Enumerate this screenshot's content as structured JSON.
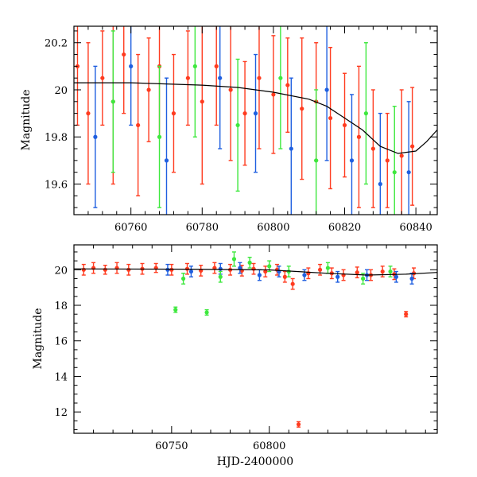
{
  "chart_data": [
    {
      "type": "scatter",
      "panel": "top",
      "title": "",
      "xlabel": "",
      "ylabel": "Magnitude",
      "xlim": [
        60744,
        60846
      ],
      "ylim": [
        20.27,
        19.47
      ],
      "y_inverted": true,
      "x_ticks": [
        60760,
        60780,
        60800,
        60820,
        60840
      ],
      "y_ticks": [
        19.6,
        19.8,
        20,
        20.2
      ],
      "x_tick_labels": [
        "60760",
        "60780",
        "60800",
        "60820",
        "60840"
      ],
      "y_tick_labels": [
        "19.6",
        "19.8",
        "20",
        "20.2"
      ],
      "grid": false,
      "legend": "none",
      "model_curve": {
        "color": "#000000",
        "points": [
          [
            60744,
            20.03
          ],
          [
            60760,
            20.03
          ],
          [
            60780,
            20.02
          ],
          [
            60790,
            20.01
          ],
          [
            60800,
            19.99
          ],
          [
            60810,
            19.96
          ],
          [
            60815,
            19.93
          ],
          [
            60820,
            19.88
          ],
          [
            60825,
            19.83
          ],
          [
            60830,
            19.76
          ],
          [
            60835,
            19.73
          ],
          [
            60840,
            19.74
          ],
          [
            60843,
            19.78
          ],
          [
            60846,
            19.83
          ]
        ]
      },
      "series": [
        {
          "color": "#ff3b1f",
          "points": [
            [
              60745,
              20.1,
              0.25
            ],
            [
              60748,
              19.9,
              0.3
            ],
            [
              60752,
              20.05,
              0.2
            ],
            [
              60755,
              19.95,
              0.35
            ],
            [
              60758,
              20.15,
              0.25
            ],
            [
              60762,
              19.85,
              0.3
            ],
            [
              60765,
              20.0,
              0.22
            ],
            [
              60768,
              20.1,
              0.3
            ],
            [
              60772,
              19.9,
              0.25
            ],
            [
              60776,
              20.05,
              0.2
            ],
            [
              60780,
              19.95,
              0.35
            ],
            [
              60784,
              20.1,
              0.25
            ],
            [
              60788,
              20.0,
              0.3
            ],
            [
              60792,
              19.9,
              0.22
            ],
            [
              60796,
              20.05,
              0.3
            ],
            [
              60800,
              19.98,
              0.25
            ],
            [
              60804,
              20.02,
              0.2
            ],
            [
              60808,
              19.92,
              0.3
            ],
            [
              60812,
              19.95,
              0.25
            ],
            [
              60816,
              19.88,
              0.3
            ],
            [
              60820,
              19.85,
              0.22
            ],
            [
              60824,
              19.8,
              0.3
            ],
            [
              60828,
              19.75,
              0.25
            ],
            [
              60832,
              19.7,
              0.2
            ],
            [
              60836,
              19.72,
              0.28
            ],
            [
              60839,
              19.76,
              0.25
            ]
          ]
        },
        {
          "color": "#1f5fe0",
          "points": [
            [
              60750,
              19.8,
              0.3
            ],
            [
              60760,
              20.1,
              0.25
            ],
            [
              60770,
              19.7,
              0.35
            ],
            [
              60785,
              20.05,
              0.3
            ],
            [
              60795,
              19.9,
              0.25
            ],
            [
              60805,
              19.75,
              0.3
            ],
            [
              60815,
              20.0,
              0.3
            ],
            [
              60822,
              19.7,
              0.28
            ],
            [
              60830,
              19.6,
              0.3
            ],
            [
              60838,
              19.65,
              0.3
            ]
          ]
        },
        {
          "color": "#3ee83e",
          "points": [
            [
              60755,
              19.95,
              0.3
            ],
            [
              60768,
              19.8,
              0.3
            ],
            [
              60778,
              20.1,
              0.3
            ],
            [
              60790,
              19.85,
              0.28
            ],
            [
              60802,
              20.05,
              0.3
            ],
            [
              60812,
              19.7,
              0.3
            ],
            [
              60826,
              19.9,
              0.3
            ],
            [
              60834,
              19.65,
              0.28
            ]
          ]
        }
      ]
    },
    {
      "type": "scatter",
      "panel": "bottom",
      "title": "",
      "xlabel": "HJD-2400000",
      "ylabel": "Magnitude",
      "xlim": [
        60700,
        60886
      ],
      "ylim": [
        21.4,
        10.8
      ],
      "y_inverted": true,
      "x_ticks": [
        60750,
        60800
      ],
      "y_ticks": [
        12,
        14,
        16,
        18,
        20
      ],
      "x_tick_labels": [
        "60750",
        "60800"
      ],
      "y_tick_labels": [
        "12",
        "14",
        "16",
        "18",
        "20"
      ],
      "grid": false,
      "legend": "none",
      "model_curve": {
        "color": "#000000",
        "points": [
          [
            60700,
            20.05
          ],
          [
            60760,
            20.03
          ],
          [
            60800,
            19.99
          ],
          [
            60830,
            19.8
          ],
          [
            60850,
            19.7
          ],
          [
            60870,
            19.75
          ],
          [
            60886,
            19.85
          ]
        ]
      },
      "series": [
        {
          "color": "#ff3b1f",
          "points": [
            [
              60705,
              20.0,
              0.3
            ],
            [
              60710,
              20.1,
              0.3
            ],
            [
              60716,
              20.0,
              0.25
            ],
            [
              60722,
              20.1,
              0.3
            ],
            [
              60728,
              20.0,
              0.3
            ],
            [
              60735,
              20.05,
              0.3
            ],
            [
              60742,
              20.1,
              0.25
            ],
            [
              60750,
              20.0,
              0.3
            ],
            [
              60758,
              20.05,
              0.3
            ],
            [
              60765,
              19.95,
              0.3
            ],
            [
              60772,
              20.1,
              0.3
            ],
            [
              60780,
              20.0,
              0.3
            ],
            [
              60786,
              19.95,
              0.3
            ],
            [
              60792,
              20.05,
              0.3
            ],
            [
              60798,
              19.9,
              0.3
            ],
            [
              60804,
              20.0,
              0.3
            ],
            [
              60808,
              19.6,
              0.3
            ],
            [
              60812,
              19.2,
              0.3
            ],
            [
              60815,
              11.3,
              0.15
            ],
            [
              60820,
              19.8,
              0.3
            ],
            [
              60826,
              20.0,
              0.3
            ],
            [
              60832,
              19.8,
              0.3
            ],
            [
              60838,
              19.7,
              0.3
            ],
            [
              60845,
              19.85,
              0.3
            ],
            [
              60852,
              19.7,
              0.3
            ],
            [
              60858,
              19.9,
              0.3
            ],
            [
              60864,
              19.75,
              0.3
            ],
            [
              60870,
              17.5,
              0.15
            ],
            [
              60874,
              19.8,
              0.3
            ]
          ]
        },
        {
          "color": "#1f5fe0",
          "points": [
            [
              60748,
              20.0,
              0.3
            ],
            [
              60760,
              19.9,
              0.3
            ],
            [
              60775,
              20.05,
              0.3
            ],
            [
              60785,
              20.1,
              0.3
            ],
            [
              60795,
              19.7,
              0.3
            ],
            [
              60805,
              19.9,
              0.3
            ],
            [
              60818,
              19.7,
              0.3
            ],
            [
              60835,
              19.6,
              0.3
            ],
            [
              60850,
              19.7,
              0.3
            ],
            [
              60865,
              19.6,
              0.3
            ],
            [
              60873,
              19.5,
              0.3
            ]
          ]
        },
        {
          "color": "#3ee83e",
          "points": [
            [
              60752,
              17.75,
              0.15
            ],
            [
              60768,
              17.6,
              0.15
            ],
            [
              60756,
              19.5,
              0.3
            ],
            [
              60775,
              19.6,
              0.3
            ],
            [
              60782,
              20.6,
              0.4
            ],
            [
              60790,
              20.4,
              0.3
            ],
            [
              60800,
              20.2,
              0.3
            ],
            [
              60810,
              19.9,
              0.3
            ],
            [
              60830,
              20.1,
              0.3
            ],
            [
              60848,
              19.5,
              0.3
            ],
            [
              60862,
              19.9,
              0.3
            ]
          ]
        }
      ]
    }
  ]
}
